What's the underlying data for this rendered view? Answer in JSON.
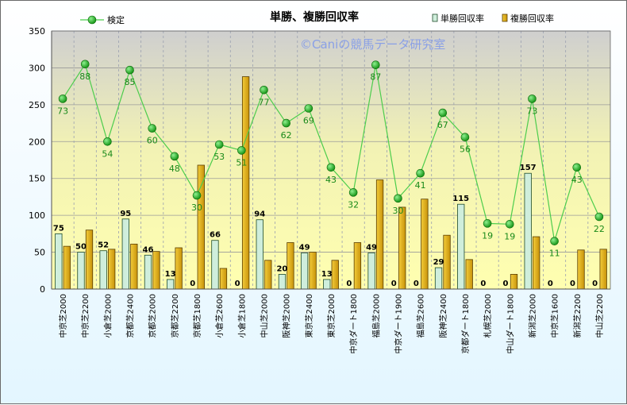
{
  "chart_data": {
    "type": "bar",
    "title": "単勝、複勝回収率",
    "watermark": "©Caniの競馬データ研究室",
    "categories": [
      "中京芝2000",
      "中京芝2200",
      "小倉芝2000",
      "京都芝2400",
      "京都芝2000",
      "京都芝2200",
      "京都芝1800",
      "小倉芝2600",
      "小倉芝1800",
      "中山芝2000",
      "阪神芝2000",
      "東京芝2400",
      "東京芝2000",
      "中京ダート1800",
      "福島芝2000",
      "中京ダート1900",
      "福島芝2600",
      "阪神芝2400",
      "京都ダート1800",
      "札幌芝2000",
      "中山ダート1800",
      "新潟芝2000",
      "中京芝1600",
      "新潟芝2200",
      "中山芝2200"
    ],
    "series": [
      {
        "name": "単勝回収率",
        "kind": "bar",
        "color": "#cfeedc",
        "values": [
          75,
          50,
          52,
          95,
          46,
          13,
          0,
          66,
          0,
          94,
          20,
          49,
          13,
          0,
          49,
          0,
          0,
          29,
          115,
          0,
          0,
          157,
          0,
          0,
          0
        ]
      },
      {
        "name": "複勝回収率",
        "kind": "bar",
        "color": "#e3b31c",
        "values": [
          58,
          80,
          54,
          61,
          51,
          56,
          168,
          28,
          288,
          39,
          63,
          50,
          39,
          63,
          148,
          111,
          122,
          73,
          40,
          0,
          20,
          71,
          0,
          53,
          54
        ]
      },
      {
        "name": "検定",
        "kind": "line",
        "color": "#22aa22",
        "values": [
          73,
          88,
          54,
          85,
          60,
          48,
          30,
          53,
          51,
          77,
          62,
          69,
          43,
          32,
          87,
          30,
          41,
          67,
          56,
          19,
          19,
          73,
          11,
          43,
          22
        ],
        "point_y": [
          258,
          305,
          200,
          297,
          218,
          180,
          127,
          196,
          188,
          270,
          225,
          245,
          165,
          131,
          304,
          123,
          157,
          239,
          206,
          89,
          88,
          258,
          65,
          165,
          98
        ]
      }
    ],
    "ylim": [
      0,
      350
    ],
    "yticks": [
      0,
      50,
      100,
      150,
      200,
      250,
      300,
      350
    ],
    "grid": true,
    "legend": "top"
  }
}
